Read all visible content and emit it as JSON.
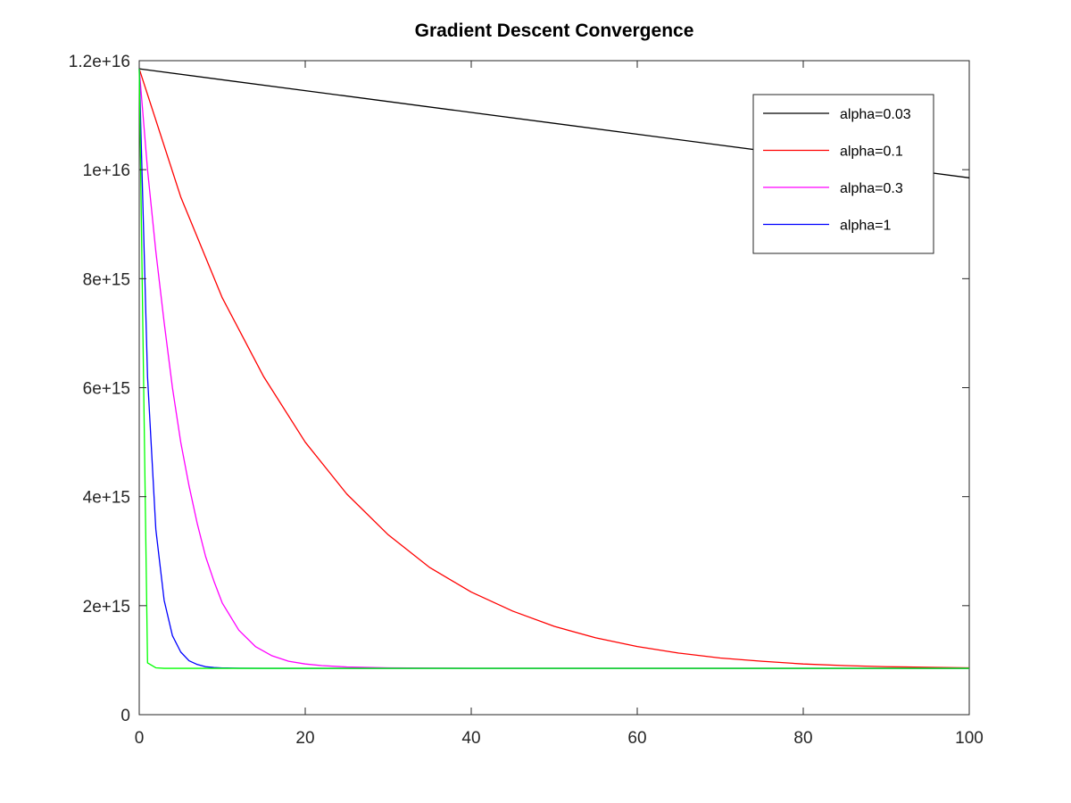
{
  "chart_data": {
    "type": "line",
    "title": "Gradient Descent Convergence",
    "xlabel": "",
    "ylabel": "",
    "xlim": [
      0,
      100
    ],
    "ylim": [
      0,
      12000000000000000
    ],
    "grid": false,
    "legend_position": "top-right",
    "x_ticks": [
      {
        "value": 0,
        "label": "0"
      },
      {
        "value": 20,
        "label": "20"
      },
      {
        "value": 40,
        "label": "40"
      },
      {
        "value": 60,
        "label": "60"
      },
      {
        "value": 80,
        "label": "80"
      },
      {
        "value": 100,
        "label": "100"
      }
    ],
    "y_ticks": [
      {
        "value": 0,
        "label": "0"
      },
      {
        "value": 2000000000000000,
        "label": "2e+15"
      },
      {
        "value": 4000000000000000,
        "label": "4e+15"
      },
      {
        "value": 6000000000000000,
        "label": "6e+15"
      },
      {
        "value": 8000000000000000,
        "label": "8e+15"
      },
      {
        "value": 10000000000000000,
        "label": "1e+16"
      },
      {
        "value": 12000000000000000,
        "label": "1.2e+16"
      }
    ],
    "series": [
      {
        "name": "alpha=0.03",
        "color": "#000000",
        "x": [
          0,
          100
        ],
        "y": [
          11850000000000000,
          9850000000000000
        ]
      },
      {
        "name": "alpha=0.1",
        "color": "#ff0000",
        "x": [
          0,
          5,
          10,
          15,
          20,
          25,
          30,
          35,
          40,
          45,
          50,
          55,
          60,
          65,
          70,
          75,
          80,
          85,
          90,
          95,
          100
        ],
        "y": [
          11850000000000000,
          9500000000000000,
          7650000000000000,
          6200000000000000,
          5000000000000000,
          4050000000000000,
          3300000000000000,
          2700000000000000,
          2250000000000000,
          1900000000000000,
          1620000000000000,
          1410000000000000,
          1250000000000000,
          1130000000000000,
          1040000000000000,
          980000000000000,
          930000000000000,
          900000000000000,
          880000000000000,
          870000000000000,
          860000000000000
        ]
      },
      {
        "name": "alpha=0.3",
        "color": "#ff00ff",
        "x": [
          0,
          1,
          2,
          3,
          4,
          5,
          6,
          7,
          8,
          9,
          10,
          12,
          14,
          16,
          18,
          20,
          22,
          25,
          30,
          35,
          40,
          50,
          100
        ],
        "y": [
          11850000000000000,
          10000000000000000,
          8500000000000000,
          7200000000000000,
          6000000000000000,
          5000000000000000,
          4200000000000000,
          3500000000000000,
          2900000000000000,
          2450000000000000,
          2050000000000000,
          1550000000000000,
          1250000000000000,
          1080000000000000,
          980000000000000,
          930000000000000,
          900000000000000,
          875000000000000,
          860000000000000,
          855000000000000,
          850000000000000,
          850000000000000,
          850000000000000
        ]
      },
      {
        "name": "alpha=1",
        "color": "#0000ff",
        "x": [
          0,
          1,
          2,
          3,
          4,
          5,
          6,
          7,
          8,
          9,
          10,
          12,
          15,
          20,
          100
        ],
        "y": [
          11850000000000000,
          6200000000000000,
          3400000000000000,
          2100000000000000,
          1450000000000000,
          1150000000000000,
          990000000000000,
          920000000000000,
          880000000000000,
          865000000000000,
          858000000000000,
          852000000000000,
          850000000000000,
          850000000000000,
          850000000000000
        ]
      },
      {
        "name": "",
        "color": "#00ff00",
        "x": [
          0,
          1,
          2,
          3,
          5,
          10,
          100
        ],
        "y": [
          11850000000000000,
          950000000000000,
          860000000000000,
          850000000000000,
          850000000000000,
          850000000000000,
          850000000000000
        ]
      }
    ]
  }
}
